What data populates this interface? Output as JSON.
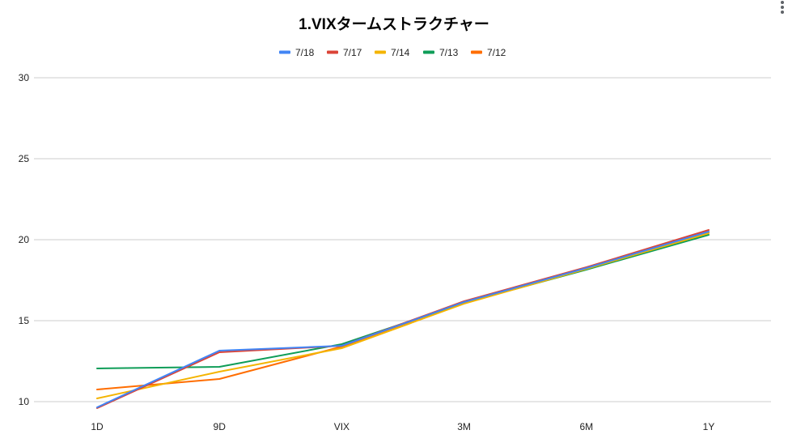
{
  "chart_data": {
    "type": "line",
    "title": "1.VIXタームストラクチャー",
    "categories": [
      "1D",
      "9D",
      "VIX",
      "3M",
      "6M",
      "1Y"
    ],
    "ylim": [
      10,
      30
    ],
    "yticks": [
      "10",
      "15",
      "20",
      "25",
      "30"
    ],
    "grid": true,
    "legend_position": "top",
    "series": [
      {
        "name": "7/18",
        "color": "#4285F4",
        "values": [
          9.65,
          13.15,
          13.45,
          16.15,
          18.25,
          20.5
        ]
      },
      {
        "name": "7/17",
        "color": "#DB4437",
        "values": [
          9.6,
          13.05,
          13.45,
          16.2,
          18.3,
          20.6
        ]
      },
      {
        "name": "7/14",
        "color": "#F4B400",
        "values": [
          10.2,
          11.85,
          13.3,
          16.05,
          18.2,
          20.4
        ]
      },
      {
        "name": "7/13",
        "color": "#0F9D58",
        "values": [
          12.05,
          12.15,
          13.55,
          16.1,
          18.15,
          20.3
        ]
      },
      {
        "name": "7/12",
        "color": "#FF6D00",
        "values": [
          10.75,
          11.4,
          13.4,
          16.15,
          18.25,
          20.45
        ]
      }
    ]
  },
  "menu": {
    "icon": "more-vert-icon"
  }
}
